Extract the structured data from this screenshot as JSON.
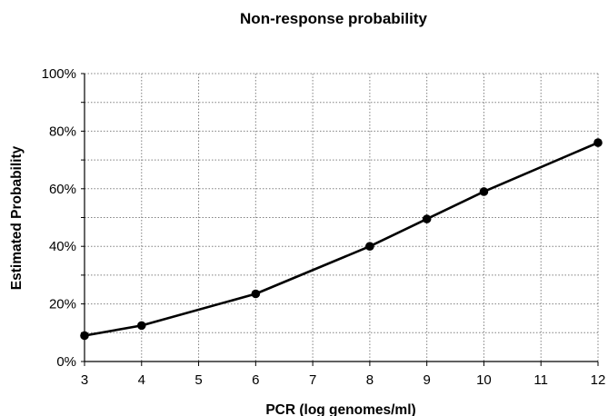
{
  "chart_data": {
    "type": "line",
    "title": "Non-response probability",
    "xlabel": "PCR (log genomes/ml)",
    "ylabel": "Estimated Probability",
    "x_ticks": [
      "3",
      "4",
      "5",
      "6",
      "7",
      "8",
      "9",
      "10",
      "11",
      "12"
    ],
    "y_ticks": [
      "0%",
      "20%",
      "40%",
      "60%",
      "80%",
      "100%"
    ],
    "xlim": [
      3,
      12
    ],
    "ylim": [
      0,
      100
    ],
    "grid": true,
    "series": [
      {
        "x": [
          3,
          4,
          6,
          8,
          9,
          10,
          12
        ],
        "y": [
          9,
          12.5,
          23.5,
          40,
          49.5,
          59,
          76
        ]
      }
    ],
    "colors": {
      "line": "#000000",
      "grid": "#808080",
      "axis": "#000000"
    }
  }
}
